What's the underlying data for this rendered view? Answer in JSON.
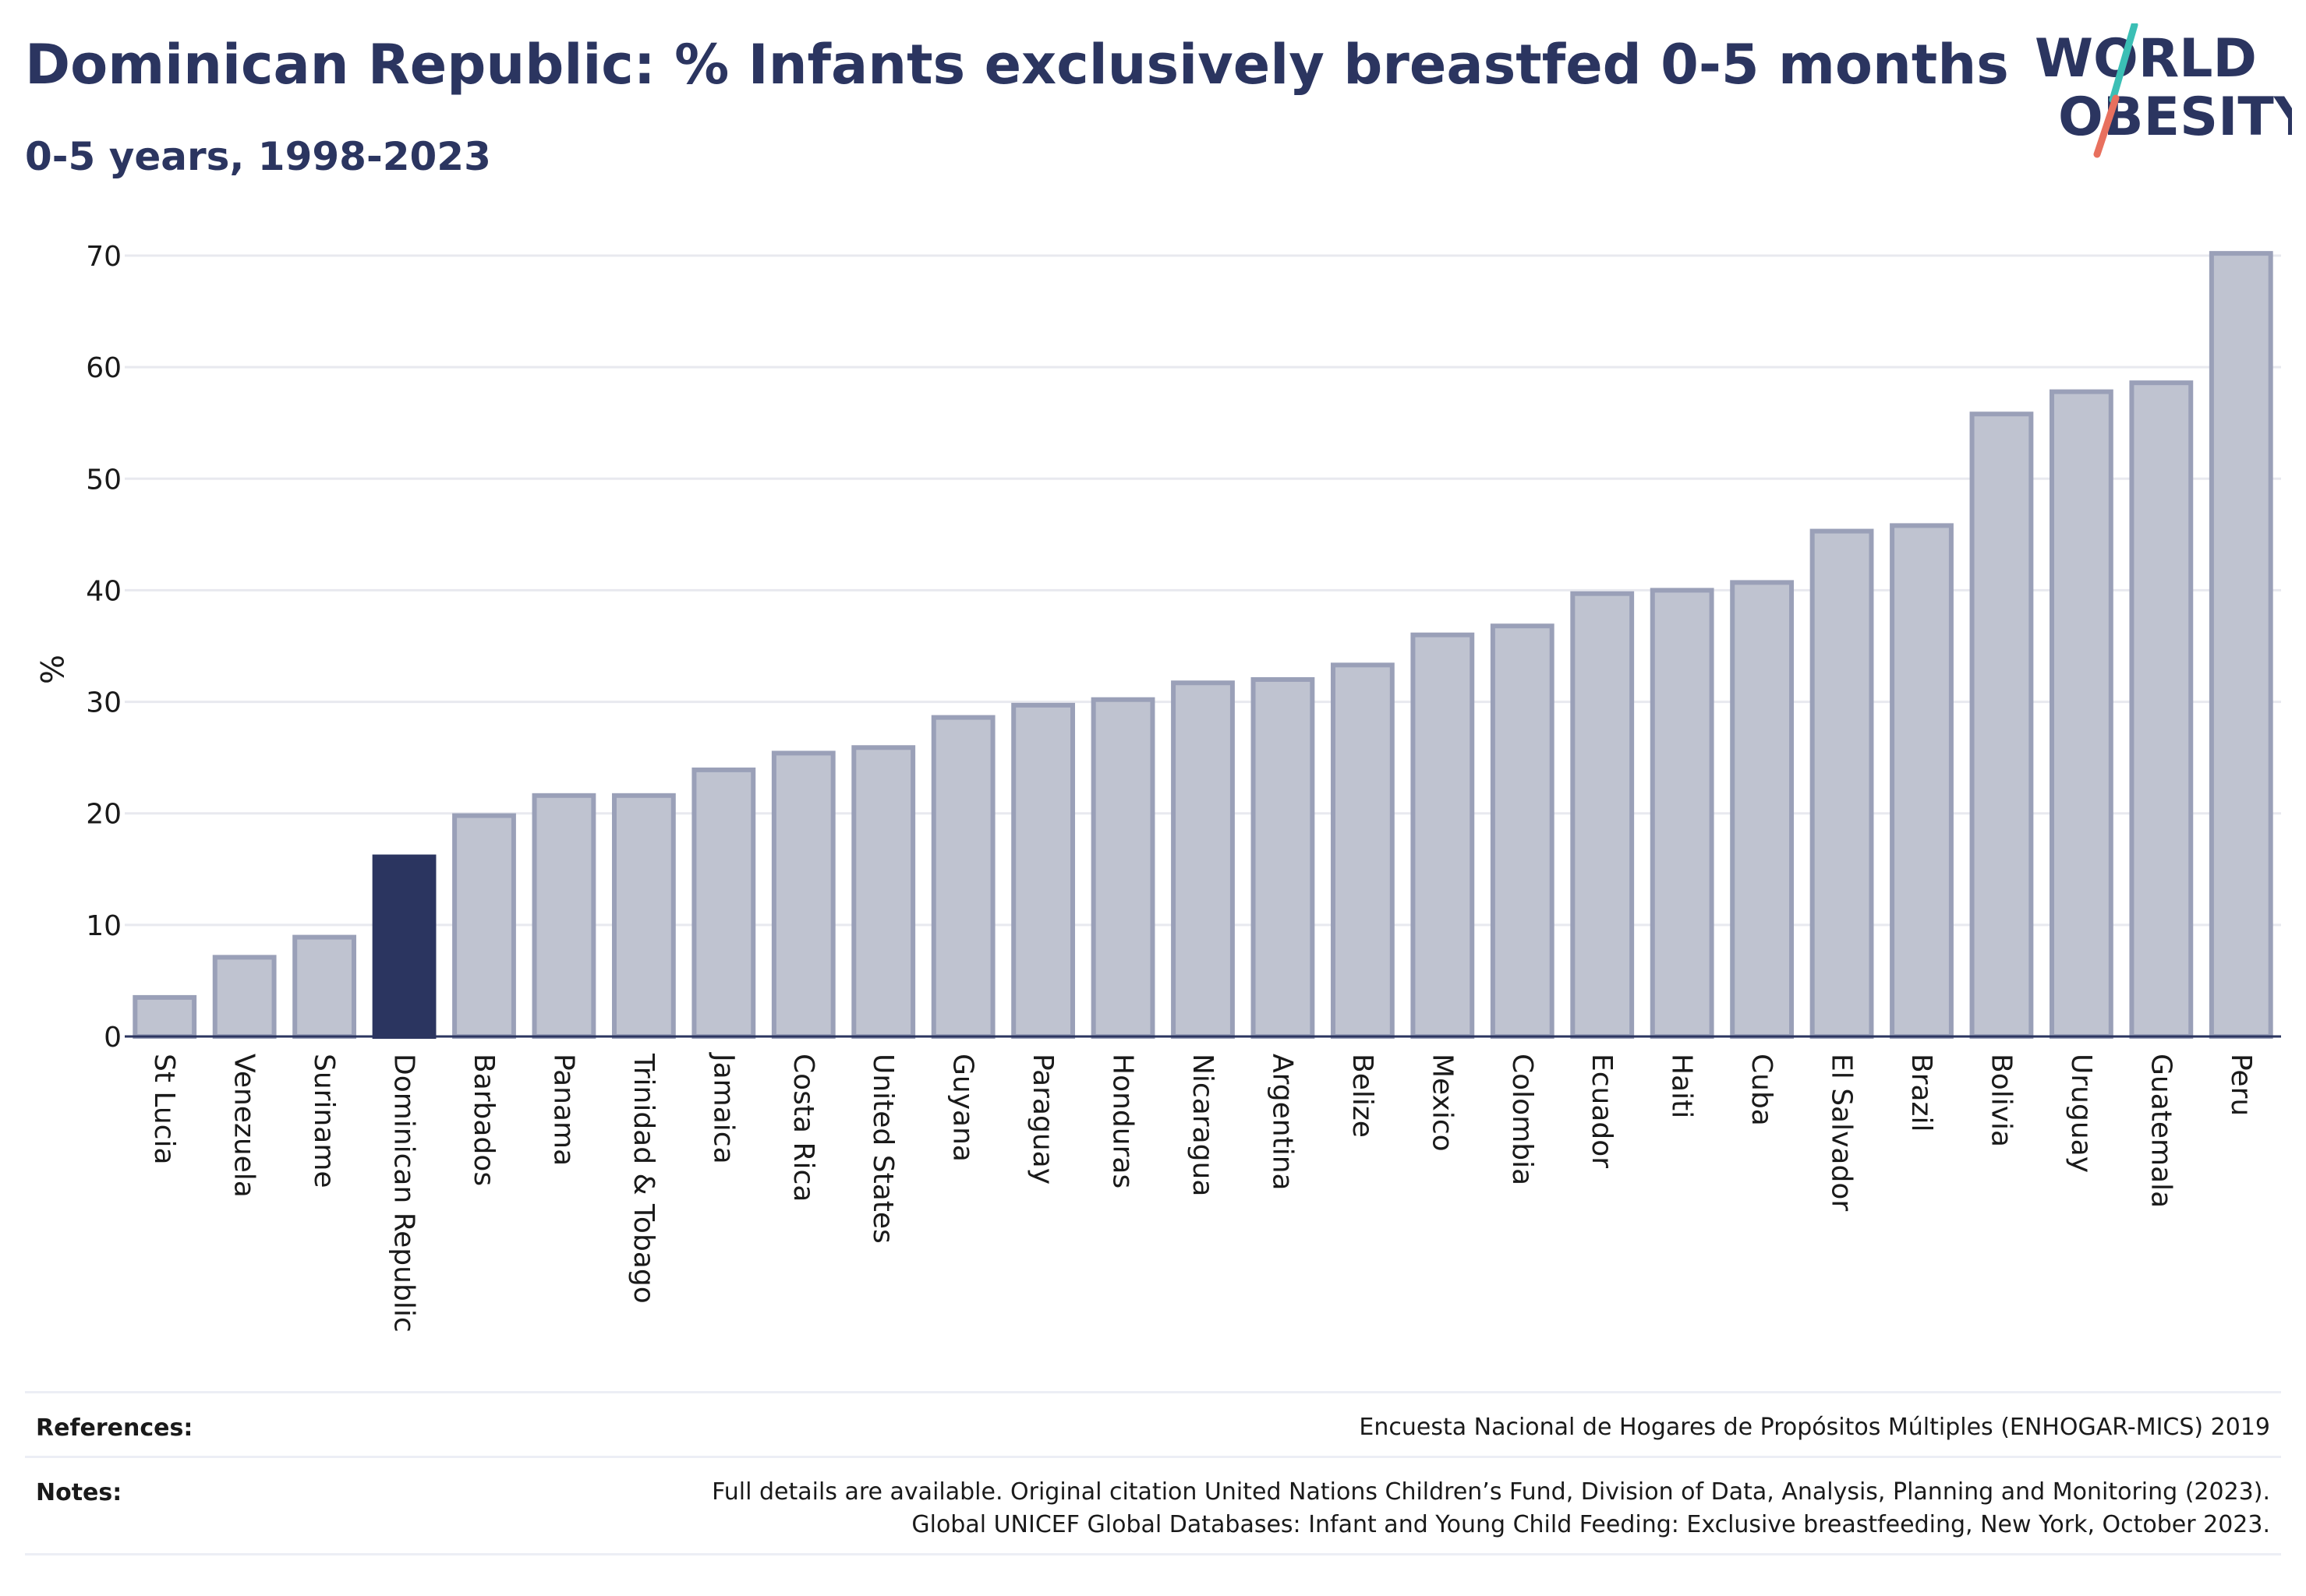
{
  "title": "Dominican Republic: % Infants exclusively breastfed 0-5 months",
  "subtitle": "0-5 years, 1998-2023",
  "logo": {
    "line1": "WORLD",
    "line2": "OBESITY"
  },
  "colors": {
    "highlight": "#2b3560",
    "bar_fill": "#bfc3d0",
    "bar_stroke": "#9aa0b8",
    "text": "#2b3560",
    "logo_teal": "#3bbfb5",
    "logo_coral": "#e8705e"
  },
  "chart_data": {
    "type": "bar",
    "ylabel": "%",
    "xlabel": "",
    "ylim": [
      0,
      70
    ],
    "yticks": [
      0,
      10,
      20,
      30,
      40,
      50,
      60,
      70
    ],
    "grid": true,
    "highlight": "Dominican Republic",
    "categories": [
      "St Lucia",
      "Venezuela",
      "Suriname",
      "Dominican Republic",
      "Barbados",
      "Panama",
      "Trinidad & Tobago",
      "Jamaica",
      "Costa Rica",
      "United States",
      "Guyana",
      "Paraguay",
      "Honduras",
      "Nicaragua",
      "Argentina",
      "Belize",
      "Mexico",
      "Colombia",
      "Ecuador",
      "Haiti",
      "Cuba",
      "El Salvador",
      "Brazil",
      "Bolivia",
      "Uruguay",
      "Guatemala",
      "Peru"
    ],
    "values": [
      3.5,
      7.1,
      8.9,
      16.1,
      19.8,
      21.6,
      21.6,
      23.9,
      25.4,
      25.9,
      28.6,
      29.7,
      30.2,
      31.7,
      32.0,
      33.3,
      36.0,
      36.8,
      39.7,
      40.0,
      40.7,
      45.3,
      45.8,
      55.8,
      57.8,
      58.6,
      70.2
    ]
  },
  "footer": {
    "references_label": "References:",
    "references_text": "Encuesta Nacional de Hogares de Propósitos Múltiples (ENHOGAR-MICS) 2019",
    "notes_label": "Notes:",
    "notes_line1": "Full details are available. Original citation United Nations Children’s Fund, Division of Data, Analysis, Planning and Monitoring (2023).",
    "notes_line2": "Global UNICEF Global Databases: Infant and Young Child Feeding: Exclusive breastfeeding, New York, October 2023."
  }
}
